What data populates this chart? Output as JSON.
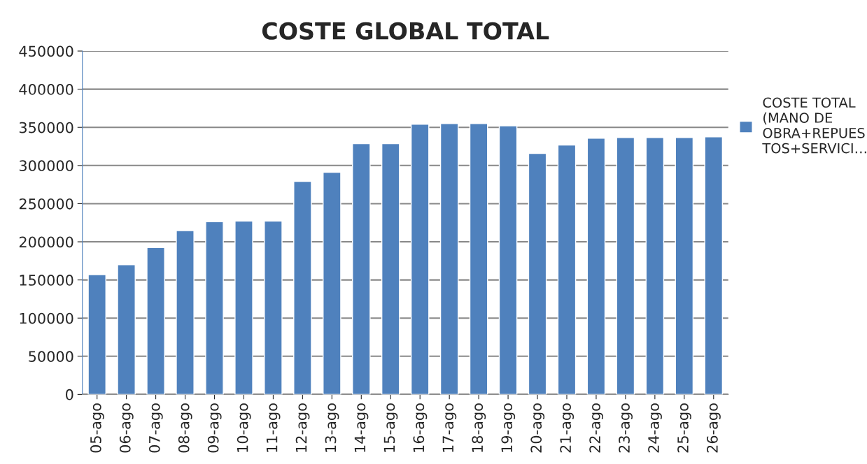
{
  "chart_data": {
    "type": "bar",
    "title": "COSTE GLOBAL TOTAL",
    "categories": [
      "05-ago",
      "06-ago",
      "07-ago",
      "08-ago",
      "09-ago",
      "10-ago",
      "11-ago",
      "12-ago",
      "13-ago",
      "14-ago",
      "15-ago",
      "16-ago",
      "17-ago",
      "18-ago",
      "19-ago",
      "20-ago",
      "21-ago",
      "22-ago",
      "23-ago",
      "24-ago",
      "25-ago",
      "26-ago"
    ],
    "series": [
      {
        "name": "COSTE TOTAL\n(MANO DE\nOBRA+REPUES\nTOS+SERVICI…",
        "color": "#4f81bd",
        "values": [
          157000,
          170000,
          192500,
          214600,
          226400,
          227300,
          227300,
          279200,
          291200,
          328600,
          328600,
          354000,
          354900,
          354900,
          352100,
          315800,
          326700,
          335800,
          336700,
          336700,
          336700,
          337600
        ]
      }
    ],
    "ylim": [
      0,
      450000
    ],
    "yticks": [
      0,
      50000,
      100000,
      150000,
      200000,
      250000,
      300000,
      350000,
      400000,
      450000
    ],
    "grid": "y",
    "legend": "right"
  }
}
